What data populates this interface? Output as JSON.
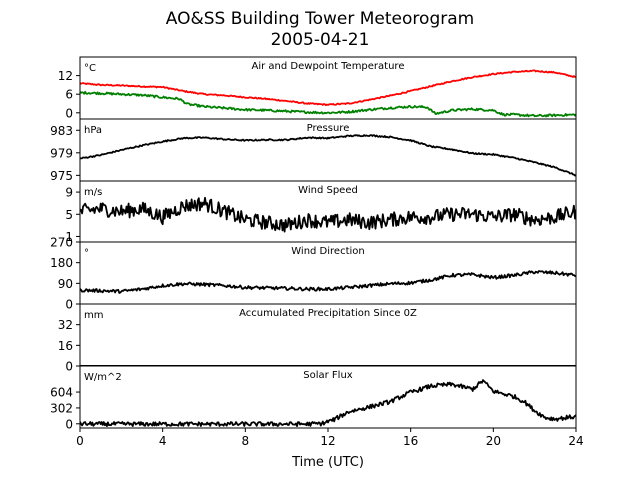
{
  "figure": {
    "title_line1": "AO&SS Building Tower Meteorogram",
    "title_line2": "2005-04-21",
    "xlabel": "Time (UTC)"
  },
  "chart_data": {
    "type": "line",
    "x_range": [
      0,
      24
    ],
    "x_ticks": [
      0,
      4,
      8,
      12,
      16,
      20,
      24
    ],
    "x_tick_labels": [
      "0",
      "4",
      "8",
      "12",
      "16",
      "20",
      "24"
    ],
    "grid": false,
    "panels": [
      {
        "id": "temp",
        "title": "Air and Dewpoint Temperature",
        "unit": "°C",
        "ylim": [
          -2,
          18
        ],
        "yticks": [
          0,
          6,
          12
        ],
        "ytick_labels": [
          "0",
          "6",
          "12"
        ],
        "series": [
          {
            "color": "#ff0000",
            "noise": 0.2,
            "x": [
              0,
              1,
              2,
              3,
              4,
              5,
              6,
              7,
              8,
              9,
              10,
              11,
              12,
              13,
              14,
              15,
              16,
              17,
              18,
              19,
              20,
              21,
              22,
              23,
              24
            ],
            "y": [
              9.5,
              9.0,
              8.8,
              8.5,
              8.3,
              7.0,
              6.0,
              5.6,
              5.0,
              4.5,
              3.8,
              3.0,
              2.6,
              3.0,
              4.2,
              5.5,
              7.0,
              8.6,
              10.2,
              11.5,
              12.5,
              13.2,
              13.5,
              13.0,
              11.5
            ]
          },
          {
            "color": "#008000",
            "noise": 0.35,
            "x": [
              0,
              1,
              2,
              3,
              4,
              4.8,
              5.2,
              6,
              7,
              8,
              9,
              10,
              11,
              12,
              13,
              14,
              15,
              16,
              16.8,
              17.2,
              18,
              19,
              20,
              20.5,
              21,
              22,
              23,
              24
            ],
            "y": [
              6.5,
              6.3,
              6.0,
              5.7,
              5.0,
              4.5,
              2.8,
              2.0,
              1.5,
              1.0,
              0.8,
              0.5,
              0.2,
              0.0,
              0.3,
              1.0,
              1.6,
              2.0,
              1.8,
              -0.3,
              0.8,
              1.2,
              0.8,
              -0.6,
              -0.6,
              -1.0,
              -0.8,
              -0.6
            ]
          }
        ]
      },
      {
        "id": "pressure",
        "title": "Pressure",
        "unit": "hPa",
        "ylim": [
          974,
          985
        ],
        "yticks": [
          975,
          979,
          983
        ],
        "ytick_labels": [
          "975",
          "979",
          "983"
        ],
        "series": [
          {
            "color": "#000000",
            "noise": 0.12,
            "x": [
              0,
              1,
              2,
              3,
              4,
              5,
              6,
              7,
              8,
              9,
              10,
              11,
              12,
              13,
              14,
              15,
              16,
              17,
              18,
              19,
              20,
              21,
              22,
              23,
              24
            ],
            "y": [
              978.0,
              978.6,
              979.5,
              980.3,
              981.0,
              981.6,
              981.7,
              981.4,
              981.2,
              981.3,
              981.3,
              981.7,
              981.6,
              982.0,
              982.1,
              981.8,
              981.2,
              980.1,
              979.6,
              978.9,
              978.7,
              978.1,
              977.3,
              976.4,
              975.0
            ]
          }
        ]
      },
      {
        "id": "wind_speed",
        "title": "Wind Speed",
        "unit": "m/s",
        "ylim": [
          0,
          11
        ],
        "yticks": [
          1,
          5,
          9
        ],
        "ytick_labels": [
          "1",
          "5",
          "9"
        ],
        "series": [
          {
            "color": "#000000",
            "noise": 1.3,
            "x": [
              0,
              1,
              2,
              3,
              4,
              5,
              6,
              7,
              8,
              9,
              10,
              11,
              12,
              13,
              14,
              15,
              16,
              17,
              18,
              19,
              20,
              21,
              22,
              23,
              24
            ],
            "y": [
              5.5,
              6.0,
              5.5,
              6.0,
              4.5,
              6.5,
              7.0,
              5.5,
              4.0,
              3.5,
              3.0,
              4.0,
              3.5,
              4.0,
              3.5,
              4.0,
              4.5,
              4.5,
              5.0,
              5.0,
              4.5,
              5.0,
              4.0,
              4.5,
              5.5
            ]
          }
        ]
      },
      {
        "id": "wind_direction",
        "title": "Wind Direction",
        "unit": "°",
        "ylim": [
          0,
          270
        ],
        "yticks": [
          0,
          90,
          180,
          270
        ],
        "ytick_labels": [
          "0",
          "90",
          "180",
          "270"
        ],
        "series": [
          {
            "color": "#000000",
            "noise": 7,
            "x": [
              0,
              1,
              2,
              3,
              4,
              5,
              6,
              7,
              8,
              9,
              10,
              11,
              12,
              13,
              14,
              15,
              16,
              17,
              18,
              19,
              20,
              21,
              22,
              23,
              24
            ],
            "y": [
              60,
              58,
              55,
              65,
              80,
              88,
              85,
              80,
              72,
              70,
              68,
              65,
              65,
              72,
              80,
              88,
              92,
              105,
              125,
              128,
              115,
              125,
              140,
              135,
              125
            ]
          }
        ]
      },
      {
        "id": "precip",
        "title": "Accumulated Precipitation Since 0Z",
        "unit": "mm",
        "ylim": [
          0,
          48
        ],
        "yticks": [
          0,
          16,
          32
        ],
        "ytick_labels": [
          "0",
          "16",
          "32"
        ],
        "series": [
          {
            "color": "#000000",
            "noise": 0,
            "x": [
              0,
              24
            ],
            "y": [
              0,
              0
            ]
          }
        ]
      },
      {
        "id": "solar",
        "title": "Solar Flux",
        "unit": "W/m^2",
        "ylim": [
          -80,
          1100
        ],
        "yticks": [
          0,
          302,
          604
        ],
        "ytick_labels": [
          "0",
          "302",
          "604"
        ],
        "series": [
          {
            "color": "#000000",
            "noise": 40,
            "x": [
              0,
              1,
              2,
              3,
              4,
              5,
              6,
              7,
              8,
              9,
              10,
              11,
              11.7,
              12.3,
              13,
              14,
              15,
              16,
              17,
              18,
              19,
              19.5,
              20,
              21,
              21.5,
              22,
              22.5,
              23,
              24
            ],
            "y": [
              0,
              -5,
              -5,
              -5,
              -5,
              -5,
              -5,
              -5,
              -5,
              -5,
              -5,
              -5,
              5,
              80,
              230,
              320,
              420,
              600,
              720,
              750,
              660,
              820,
              620,
              520,
              420,
              250,
              120,
              90,
              140
            ]
          }
        ]
      }
    ]
  }
}
